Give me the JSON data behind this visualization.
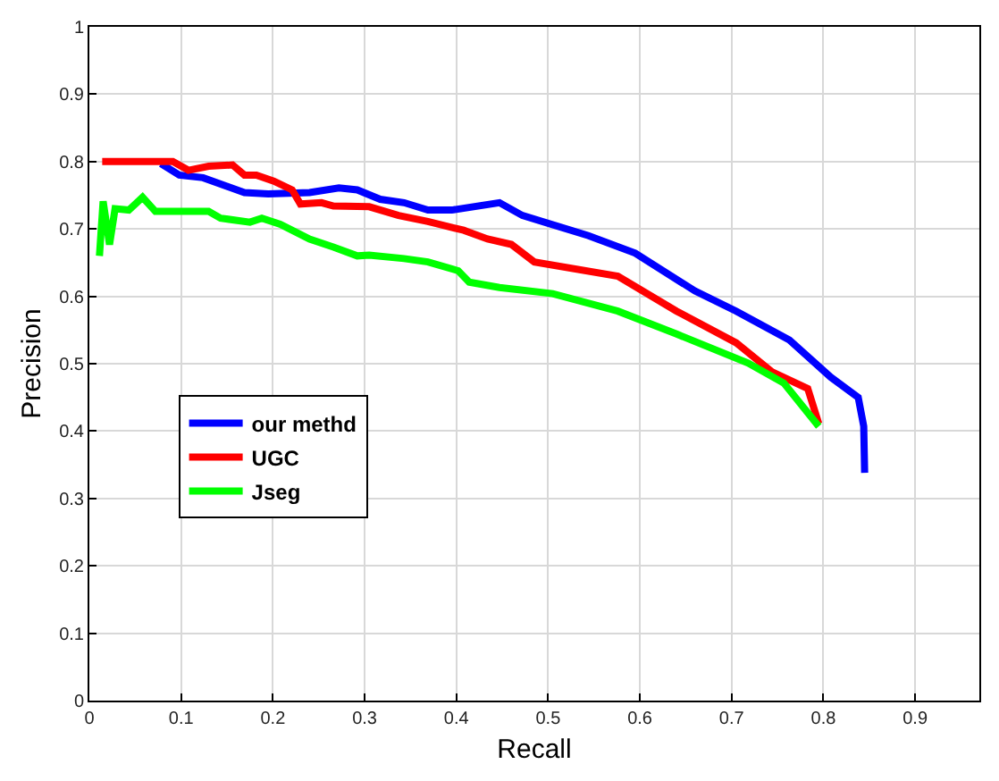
{
  "chart_data": {
    "type": "line",
    "xlabel": "Recall",
    "ylabel": "Precision",
    "xlim": [
      0,
      0.97
    ],
    "ylim": [
      0,
      1
    ],
    "xticks": [
      0,
      0.1,
      0.2,
      0.3,
      0.4,
      0.5,
      0.6,
      0.7,
      0.8,
      0.9
    ],
    "yticks": [
      0,
      0.1,
      0.2,
      0.3,
      0.4,
      0.5,
      0.6,
      0.7,
      0.8,
      0.9,
      1
    ],
    "grid": true,
    "legend": "bottom left",
    "marker": "none",
    "line_style": "solid",
    "series": [
      {
        "name": "our methd",
        "color": "#0000ff",
        "x": [
          0.078,
          0.098,
          0.124,
          0.169,
          0.195,
          0.24,
          0.272,
          0.292,
          0.317,
          0.343,
          0.369,
          0.395,
          0.447,
          0.472,
          0.544,
          0.595,
          0.66,
          0.705,
          0.763,
          0.808,
          0.838,
          0.844,
          0.845
        ],
        "values": [
          0.797,
          0.78,
          0.776,
          0.754,
          0.752,
          0.754,
          0.761,
          0.758,
          0.744,
          0.739,
          0.728,
          0.728,
          0.739,
          0.72,
          0.69,
          0.664,
          0.608,
          0.578,
          0.535,
          0.48,
          0.45,
          0.407,
          0.338
        ]
      },
      {
        "name": "UGC",
        "color": "#ff0000",
        "x": [
          0.014,
          0.091,
          0.108,
          0.13,
          0.156,
          0.169,
          0.182,
          0.201,
          0.221,
          0.23,
          0.253,
          0.266,
          0.305,
          0.337,
          0.369,
          0.408,
          0.434,
          0.46,
          0.485,
          0.576,
          0.64,
          0.705,
          0.744,
          0.783,
          0.795
        ],
        "values": [
          0.8,
          0.8,
          0.787,
          0.793,
          0.795,
          0.78,
          0.78,
          0.771,
          0.758,
          0.737,
          0.739,
          0.734,
          0.733,
          0.72,
          0.711,
          0.698,
          0.685,
          0.677,
          0.651,
          0.63,
          0.578,
          0.531,
          0.488,
          0.463,
          0.411
        ]
      },
      {
        "name": "Jseg",
        "color": "#00ff00",
        "x": [
          0.011,
          0.015,
          0.022,
          0.028,
          0.043,
          0.058,
          0.072,
          0.13,
          0.143,
          0.175,
          0.188,
          0.208,
          0.24,
          0.266,
          0.292,
          0.305,
          0.343,
          0.369,
          0.402,
          0.414,
          0.447,
          0.505,
          0.576,
          0.64,
          0.718,
          0.757,
          0.795
        ],
        "values": [
          0.66,
          0.741,
          0.677,
          0.73,
          0.728,
          0.747,
          0.726,
          0.726,
          0.716,
          0.71,
          0.716,
          0.707,
          0.685,
          0.673,
          0.66,
          0.661,
          0.656,
          0.651,
          0.638,
          0.621,
          0.613,
          0.604,
          0.578,
          0.544,
          0.501,
          0.471,
          0.407
        ]
      }
    ]
  }
}
